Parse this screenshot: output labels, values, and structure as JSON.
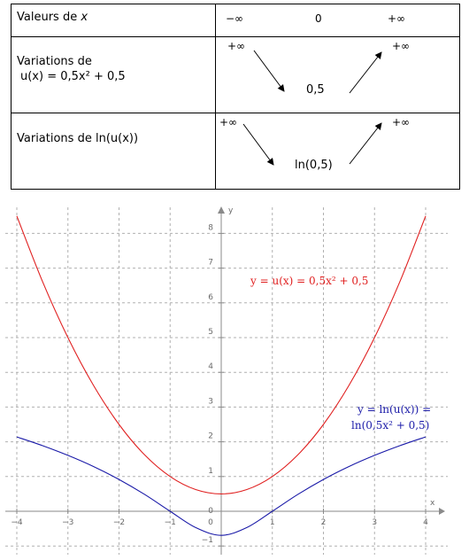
{
  "table": {
    "row1": {
      "label_prefix": "Valeurs de ",
      "label_var": "x",
      "values": [
        "−∞",
        "0",
        "+∞"
      ]
    },
    "row2": {
      "label_line1": "Variations de",
      "label_line2": "u(x) = 0,5x² + 0,5",
      "left": "+∞",
      "min": "0,5",
      "right": "+∞"
    },
    "row3": {
      "label": "Variations  de ln(u(x))",
      "left": "+∞",
      "min": "ln(0,5)",
      "right": "+∞"
    }
  },
  "chart_data": {
    "type": "line",
    "x_axis_label": "x",
    "y_axis_label": "y",
    "xlim": [
      -4,
      4
    ],
    "ylim": [
      -1,
      8.5
    ],
    "x_ticks": [
      "−4",
      "−3",
      "−2",
      "−1",
      "0",
      "1",
      "2",
      "3",
      "4"
    ],
    "y_ticks": [
      "−1",
      "1",
      "2",
      "3",
      "4",
      "5",
      "6",
      "7",
      "8"
    ],
    "grid": true,
    "series": [
      {
        "name": "y = u(x) = 0,5x² + 0,5",
        "color": "#e02020",
        "x": [
          -4,
          -3.5,
          -3,
          -2.5,
          -2,
          -1.5,
          -1,
          -0.5,
          0,
          0.5,
          1,
          1.5,
          2,
          2.5,
          3,
          3.5,
          4
        ],
        "y": [
          8.5,
          6.625,
          5,
          3.625,
          2.5,
          1.625,
          1,
          0.625,
          0.5,
          0.625,
          1,
          1.625,
          2.5,
          3.625,
          5,
          6.625,
          8.5
        ]
      },
      {
        "name": "y = ln(u(x)) = ln(0,5x² + 0,5)",
        "label_line1": "y = ln(u(x)) =",
        "label_line2": "ln(0,5x² + 0,5)",
        "color": "#1a1aa8",
        "x": [
          -4,
          -3.5,
          -3,
          -2.5,
          -2,
          -1.5,
          -1,
          -0.5,
          0,
          0.5,
          1,
          1.5,
          2,
          2.5,
          3,
          3.5,
          4
        ],
        "y": [
          2.14,
          1.891,
          1.609,
          1.288,
          0.916,
          0.486,
          0,
          -0.47,
          -0.693,
          -0.47,
          0,
          0.486,
          0.916,
          1.288,
          1.609,
          1.891,
          2.14
        ]
      }
    ]
  }
}
